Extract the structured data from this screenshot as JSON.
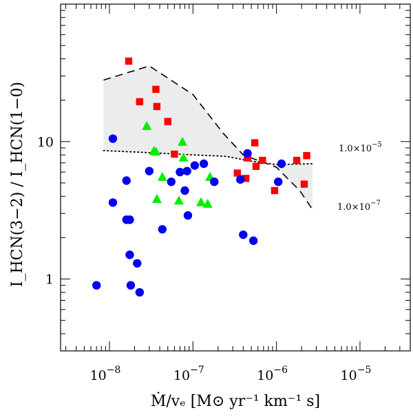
{
  "chart_data": {
    "type": "scatter",
    "xscale": "log",
    "yscale": "log",
    "xlim": [
      2.6e-09,
      4e-05
    ],
    "ylim": [
      0.3,
      100
    ],
    "grid": false,
    "legend": "none",
    "xlabel": "Ṁ/vₑ [M⊙ yr⁻¹ km⁻¹ s]",
    "ylabel": "I_HCN(3−2) / I_HCN(1−0)",
    "xticks": [
      {
        "value": 1e-08,
        "base": "10",
        "exp": "−8"
      },
      {
        "value": 1e-07,
        "base": "10",
        "exp": "−7"
      },
      {
        "value": 1e-06,
        "base": "10",
        "exp": "−6"
      },
      {
        "value": 1e-05,
        "base": "10",
        "exp": "−5"
      }
    ],
    "yticks": [
      {
        "value": 1,
        "label": "1"
      },
      {
        "value": 10,
        "label": "10"
      }
    ],
    "series": [
      {
        "marker": "square",
        "color": "#ff0000",
        "points": [
          [
            1.7e-08,
            38.5
          ],
          [
            2.3e-08,
            19.5
          ],
          [
            3.6e-08,
            24.0
          ],
          [
            3.7e-08,
            18.0
          ],
          [
            5e-08,
            14.0
          ],
          [
            6e-08,
            8.1
          ],
          [
            3.4e-07,
            5.9
          ],
          [
            4.3e-07,
            5.4
          ],
          [
            4.5e-07,
            7.6
          ],
          [
            5.5e-07,
            9.8
          ],
          [
            5.7e-07,
            6.6
          ],
          [
            6.8e-07,
            7.3
          ],
          [
            9.5e-07,
            4.4
          ],
          [
            1.75e-06,
            7.3
          ],
          [
            2.15e-06,
            4.9
          ],
          [
            2.3e-06,
            7.9
          ]
        ]
      },
      {
        "marker": "triangle",
        "color": "#00ee00",
        "points": [
          [
            2.8e-08,
            12.9
          ],
          [
            3.4e-08,
            8.5
          ],
          [
            3.6e-08,
            8.4
          ],
          [
            3.7e-08,
            3.8
          ],
          [
            4.3e-08,
            5.5
          ],
          [
            6.8e-08,
            3.7
          ],
          [
            7.5e-08,
            9.9
          ],
          [
            7.7e-08,
            7.6
          ],
          [
            1.25e-07,
            3.6
          ],
          [
            1.5e-07,
            3.5
          ],
          [
            1.6e-07,
            5.5
          ]
        ]
      },
      {
        "marker": "circle",
        "color": "#0000ee",
        "points": [
          [
            1.1e-08,
            10.5
          ],
          [
            1.1e-08,
            3.6
          ],
          [
            1.6e-08,
            5.2
          ],
          [
            1.6e-08,
            2.7
          ],
          [
            1.75e-08,
            2.7
          ],
          [
            1.75e-08,
            1.5
          ],
          [
            1.8e-08,
            0.9
          ],
          [
            2.15e-08,
            1.3
          ],
          [
            2.3e-08,
            0.8
          ],
          [
            7e-09,
            0.9
          ],
          [
            3e-08,
            6.1
          ],
          [
            4.3e-08,
            2.3
          ],
          [
            5.5e-08,
            5.1
          ],
          [
            7e-08,
            6.0
          ],
          [
            8e-08,
            4.4
          ],
          [
            8.5e-08,
            6.1
          ],
          [
            8.7e-08,
            2.9
          ],
          [
            1.05e-07,
            6.7
          ],
          [
            1.35e-07,
            6.9
          ],
          [
            1.8e-07,
            5.1
          ],
          [
            3.7e-07,
            5.3
          ],
          [
            4e-07,
            2.1
          ],
          [
            4.5e-07,
            8.2
          ],
          [
            5.3e-07,
            1.9
          ],
          [
            1.05e-06,
            5.1
          ],
          [
            1.15e-06,
            6.9
          ]
        ]
      }
    ],
    "model_curves": [
      {
        "label_base": "1.0×10",
        "label_exp": "−5",
        "style": "dotted",
        "points": [
          [
            8.5e-09,
            8.6
          ],
          [
            3e-08,
            8.3
          ],
          [
            1e-07,
            8.0
          ],
          [
            2.5e-07,
            7.8
          ],
          [
            5e-07,
            7.2
          ],
          [
            1e-06,
            6.8
          ],
          [
            2.7e-06,
            6.9
          ]
        ]
      },
      {
        "label_base": "1.0×10",
        "label_exp": "−7",
        "style": "dashed",
        "points": [
          [
            8.5e-09,
            28.0
          ],
          [
            3e-08,
            35.5
          ],
          [
            1e-07,
            22.0
          ],
          [
            2.3e-07,
            11.5
          ],
          [
            4e-07,
            8.0
          ],
          [
            1e-06,
            6.5
          ],
          [
            1.9e-06,
            4.4
          ],
          [
            2.7e-06,
            3.2
          ]
        ]
      }
    ]
  }
}
